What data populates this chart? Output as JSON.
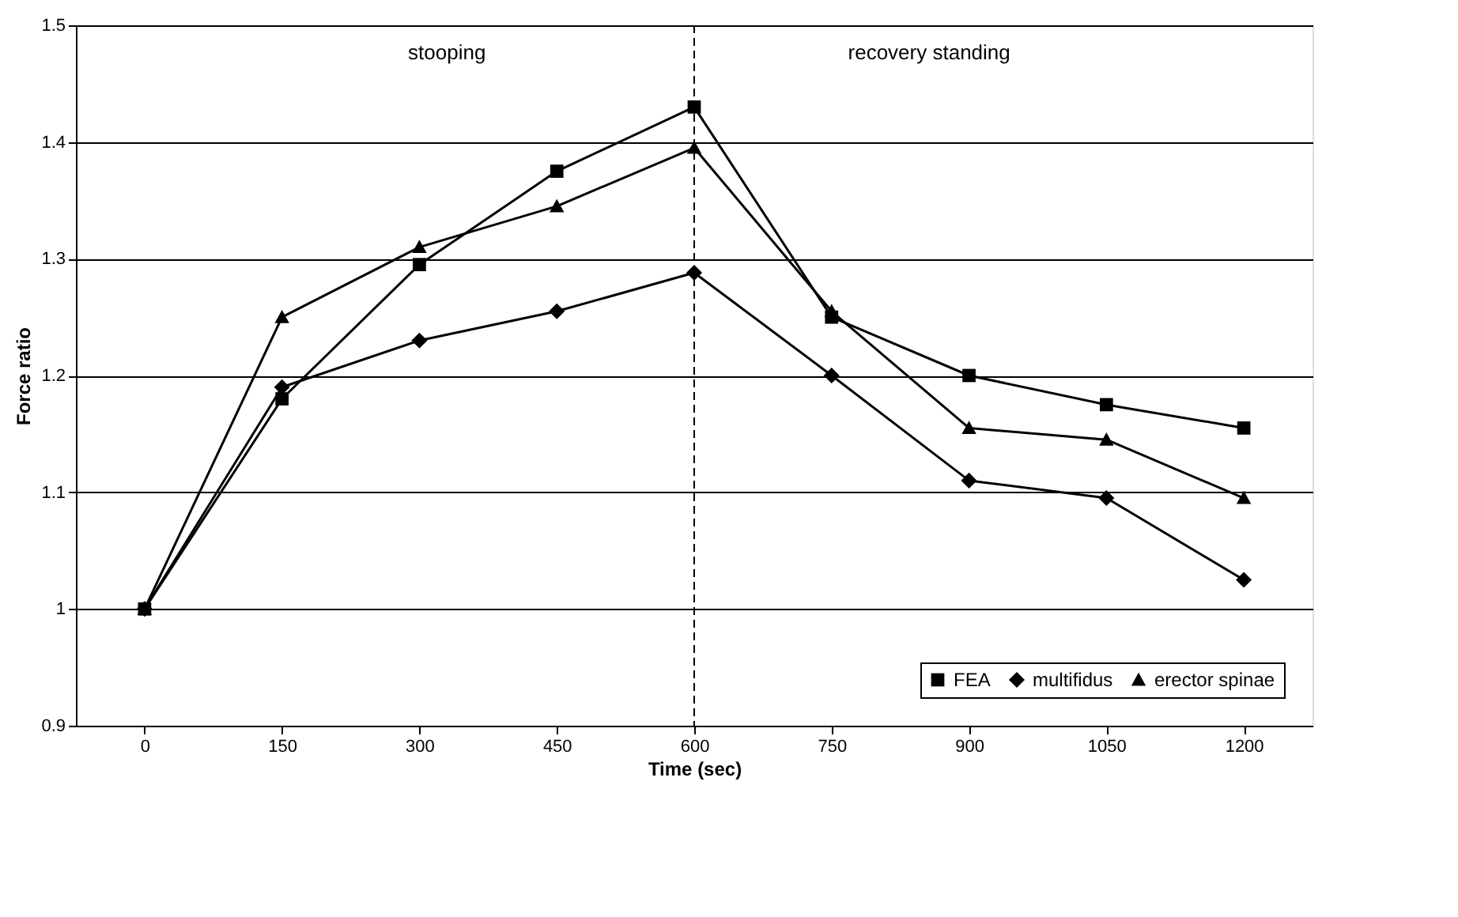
{
  "chart_data": {
    "type": "line",
    "xlabel": "Time (sec)",
    "ylabel": "Force ratio",
    "x": [
      0,
      150,
      300,
      450,
      600,
      750,
      900,
      1050,
      1200
    ],
    "series": [
      {
        "name": "FEA",
        "color": "#000000",
        "marker": "square",
        "values": [
          1.0,
          1.18,
          1.295,
          1.375,
          1.43,
          1.25,
          1.2,
          1.175,
          1.155
        ]
      },
      {
        "name": "multifidus",
        "color": "#000000",
        "marker": "diamond",
        "values": [
          1.0,
          1.19,
          1.23,
          1.255,
          1.288,
          1.2,
          1.11,
          1.095,
          1.025
        ]
      },
      {
        "name": "erector spinae",
        "color": "#000000",
        "marker": "triangle",
        "values": [
          1.0,
          1.25,
          1.31,
          1.345,
          1.395,
          1.255,
          1.155,
          1.145,
          1.095
        ]
      }
    ],
    "xlim": [
      -75,
      1275
    ],
    "xticks": [
      0,
      150,
      300,
      450,
      600,
      750,
      900,
      1050,
      1200
    ],
    "ylim": [
      0.9,
      1.5
    ],
    "yticks": [
      0.9,
      1,
      1.1,
      1.2,
      1.3,
      1.4,
      1.5
    ],
    "ref_lines": [
      {
        "axis": "x",
        "value": 600,
        "line_style": "dashed",
        "color": "#000000"
      }
    ],
    "annotations": [
      "stooping",
      "recovery standing"
    ],
    "grid": "y",
    "legend": "bottom right",
    "line_style": "solid"
  }
}
